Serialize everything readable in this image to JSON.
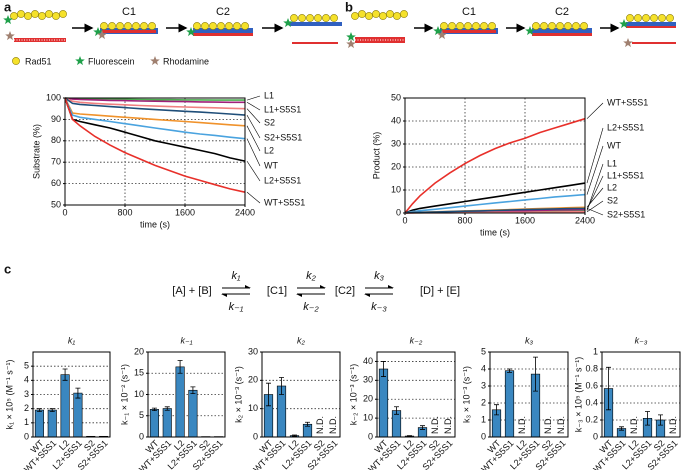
{
  "panel_labels": [
    "a",
    "b",
    "c"
  ],
  "schematic": {
    "a_states": [
      "C1",
      "C2"
    ],
    "b_states": [
      "C1",
      "C2"
    ],
    "legend": [
      "Rad51",
      "Fluorescein",
      "Rhodamine"
    ]
  },
  "scheme": {
    "species": [
      "[A] + [B]",
      "[C1]",
      "[C2]",
      "[D] + [E]"
    ],
    "forward": [
      "k₁",
      "k₂",
      "k₃"
    ],
    "reverse": [
      "k₋₁",
      "k₋₂",
      "k₋₃"
    ]
  },
  "chart_data": [
    {
      "type": "line",
      "ylabel": "Substrate (%)",
      "xlabel": "time (s)",
      "x": [
        0,
        100,
        200,
        400,
        600,
        800,
        1000,
        1200,
        1400,
        1600,
        1800,
        2000,
        2200,
        2400
      ],
      "xlim": [
        0,
        2400
      ],
      "xticks": [
        0,
        800,
        1600,
        2400
      ],
      "ylim": [
        50,
        100
      ],
      "yticks": [
        50,
        60,
        70,
        80,
        90,
        100
      ],
      "grid": true,
      "series": [
        {
          "name": "L1",
          "color": "#4caf50",
          "values": [
            100,
            99.8,
            99.7,
            99.6,
            99.5,
            99.4,
            99.3,
            99.2,
            99.2,
            99.1,
            99.1,
            99,
            99,
            99
          ]
        },
        {
          "name": "L1+S5S1",
          "color": "#a0207a",
          "values": [
            100,
            99.5,
            99.3,
            99.1,
            98.9,
            98.8,
            98.6,
            98.5,
            98.4,
            98.3,
            98.2,
            98.1,
            98,
            98
          ]
        },
        {
          "name": "S2",
          "color": "#f08080",
          "values": [
            100,
            98.5,
            98,
            97.5,
            97.1,
            96.8,
            96.5,
            96.2,
            96,
            95.8,
            95.6,
            95.4,
            95.2,
            95
          ]
        },
        {
          "name": "S2+S5S1",
          "color": "#1f4e79",
          "values": [
            100,
            97.5,
            97,
            96.5,
            96,
            95.5,
            95,
            94.6,
            94.2,
            93.8,
            93.4,
            93,
            92.5,
            92
          ]
        },
        {
          "name": "L2",
          "color": "#f0922b",
          "values": [
            100,
            93,
            92.5,
            92,
            91.5,
            91,
            90.5,
            90,
            89.5,
            89,
            88.5,
            88,
            87.5,
            87
          ]
        },
        {
          "name": "WT",
          "color": "#4aa3df",
          "values": [
            100,
            92,
            91,
            90,
            89,
            88,
            87,
            86,
            85,
            84,
            83.2,
            82.5,
            81.7,
            81
          ]
        },
        {
          "name": "L2+S5S1",
          "color": "#000000",
          "values": [
            100,
            90,
            89,
            87.5,
            86,
            84,
            82,
            80,
            78.5,
            77,
            75.5,
            74,
            72,
            70.5
          ]
        },
        {
          "name": "WT+S5S1",
          "color": "#e8302a",
          "values": [
            100,
            90,
            87,
            82,
            78,
            74.5,
            71.5,
            68.5,
            66,
            63.5,
            61.5,
            59.5,
            57.5,
            56
          ]
        }
      ]
    },
    {
      "type": "line",
      "ylabel": "Product (%)",
      "xlabel": "time (s)",
      "x": [
        0,
        100,
        200,
        400,
        600,
        800,
        1000,
        1200,
        1400,
        1600,
        1800,
        2000,
        2200,
        2400
      ],
      "xlim": [
        0,
        2400
      ],
      "xticks": [
        0,
        800,
        1600,
        2400
      ],
      "ylim": [
        0,
        50
      ],
      "yticks": [
        0,
        10,
        20,
        30,
        40,
        50
      ],
      "grid": true,
      "series": [
        {
          "name": "WT+S5S1",
          "color": "#e8302a",
          "values": [
            0,
            4,
            7.5,
            13,
            17.5,
            21.5,
            25,
            28,
            30.5,
            32.5,
            35,
            37,
            39,
            41
          ]
        },
        {
          "name": "L2+S5S1",
          "color": "#000000",
          "values": [
            0,
            1.2,
            2,
            3,
            4,
            5,
            6,
            7,
            8,
            9,
            10,
            11,
            12,
            13
          ]
        },
        {
          "name": "WT",
          "color": "#4aa3df",
          "values": [
            0,
            0.6,
            1,
            1.6,
            2.3,
            3,
            3.7,
            4.4,
            5,
            5.7,
            6.3,
            7,
            7.5,
            8
          ]
        },
        {
          "name": "L1",
          "color": "#4caf50",
          "values": [
            0,
            0.1,
            0.1,
            0.2,
            0.3,
            0.4,
            0.5,
            0.6,
            0.6,
            0.7,
            0.8,
            0.9,
            0.9,
            1
          ]
        },
        {
          "name": "L1+S5S1",
          "color": "#a0207a",
          "values": [
            0,
            0.1,
            0.2,
            0.3,
            0.4,
            0.6,
            0.7,
            0.8,
            0.9,
            1,
            1.1,
            1.3,
            1.4,
            1.5
          ]
        },
        {
          "name": "L2",
          "color": "#f0922b",
          "values": [
            0,
            0.2,
            0.3,
            0.5,
            0.7,
            0.9,
            1.1,
            1.3,
            1.5,
            1.7,
            1.9,
            2.1,
            2.3,
            2.5
          ]
        },
        {
          "name": "S2",
          "color": "#f08080",
          "values": [
            0,
            0,
            0.1,
            0.1,
            0.1,
            0.2,
            0.2,
            0.3,
            0.3,
            0.3,
            0.4,
            0.4,
            0.5,
            0.5
          ]
        },
        {
          "name": "S2+S5S1",
          "color": "#1f4e79",
          "values": [
            0,
            0.2,
            0.3,
            0.4,
            0.6,
            0.8,
            0.9,
            1.1,
            1.3,
            1.5,
            1.6,
            1.8,
            1.9,
            2
          ]
        }
      ]
    },
    {
      "type": "bar",
      "title": "k₁",
      "ylabel": "k₁ × 10⁵ (M⁻¹ s⁻¹)",
      "color": "#3a87c0",
      "categories": [
        "WT",
        "WT+S5S1",
        "L2",
        "L2+S5S1",
        "S2",
        "S2+S5S1"
      ],
      "values": [
        1.9,
        1.9,
        4.4,
        3.1,
        0.05,
        0.05
      ],
      "errors": [
        0.1,
        0.1,
        0.4,
        0.35,
        0,
        0
      ],
      "ylim": [
        0,
        6
      ],
      "yticks": [
        0,
        1,
        2,
        3,
        4,
        5
      ],
      "grid": true
    },
    {
      "type": "bar",
      "title": "k₋₁",
      "ylabel": "k₋₁ × 10⁻² (s⁻¹)",
      "color": "#3a87c0",
      "categories": [
        "WT",
        "WT+S5S1",
        "L2",
        "L2+S5S1",
        "S2",
        "S2+S5S1"
      ],
      "values": [
        6.5,
        6.7,
        16.5,
        11,
        0.1,
        0.1
      ],
      "errors": [
        0.3,
        0.4,
        1.5,
        0.8,
        0,
        0
      ],
      "ylim": [
        0,
        20
      ],
      "yticks": [
        0,
        5,
        10,
        15,
        20
      ],
      "grid": true
    },
    {
      "type": "bar",
      "title": "k₂",
      "ylabel": "k₂ × 10⁻³ (s⁻¹)",
      "color": "#3a87c0",
      "categories": [
        "WT",
        "WT+S5S1",
        "L2",
        "L2+S5S1",
        "S2",
        "S2+S5S1"
      ],
      "values": [
        15,
        18,
        0.5,
        4.5,
        null,
        null
      ],
      "errors": [
        4,
        3,
        0.2,
        0.7,
        null,
        null
      ],
      "value_labels": [
        null,
        null,
        null,
        null,
        "N.D.",
        "N.D."
      ],
      "ylim": [
        0,
        30
      ],
      "yticks": [
        0,
        10,
        20,
        30
      ],
      "grid": true
    },
    {
      "type": "bar",
      "title": "k₋₂",
      "ylabel": "k₋₂ × 10⁻³ (s⁻¹)",
      "color": "#3a87c0",
      "categories": [
        "WT",
        "WT+S5S1",
        "L2",
        "L2+S5S1",
        "S2",
        "S2+S5S1"
      ],
      "values": [
        36,
        14,
        0.5,
        5,
        null,
        null
      ],
      "errors": [
        4,
        2,
        0.2,
        1,
        null,
        null
      ],
      "value_labels": [
        null,
        null,
        null,
        null,
        "N.D.",
        "N.D."
      ],
      "ylim": [
        0,
        45
      ],
      "yticks": [
        0,
        10,
        20,
        30,
        40
      ],
      "grid": true
    },
    {
      "type": "bar",
      "title": "k₃",
      "ylabel": "k₃ × 10⁻³ (s⁻¹)",
      "color": "#3a87c0",
      "categories": [
        "WT",
        "WT+S5S1",
        "L2",
        "L2+S5S1",
        "S2",
        "S2+S5S1"
      ],
      "values": [
        1.6,
        3.9,
        null,
        3.7,
        null,
        null
      ],
      "errors": [
        0.3,
        0.1,
        null,
        1,
        null,
        null
      ],
      "value_labels": [
        null,
        null,
        "N.D.",
        null,
        "N.D.",
        "N.D."
      ],
      "ylim": [
        0,
        5
      ],
      "yticks": [
        0,
        1,
        2,
        3,
        4,
        5
      ],
      "grid": true
    },
    {
      "type": "bar",
      "title": "k₋₃",
      "ylabel": "k₋₃ × 10⁵ (M⁻¹ s⁻¹)",
      "color": "#3a87c0",
      "categories": [
        "WT",
        "WT+S5S1",
        "L2",
        "L2+S5S1",
        "S2",
        "S2+S5S1"
      ],
      "values": [
        0.57,
        0.1,
        null,
        0.22,
        0.2,
        null
      ],
      "errors": [
        0.25,
        0.02,
        null,
        0.08,
        0.06,
        null
      ],
      "value_labels": [
        null,
        null,
        "N.D.",
        null,
        null,
        "N.D."
      ],
      "ylim": [
        0,
        1
      ],
      "yticks": [
        0,
        0.2,
        0.4,
        0.6,
        0.8,
        1
      ],
      "grid": true
    }
  ]
}
